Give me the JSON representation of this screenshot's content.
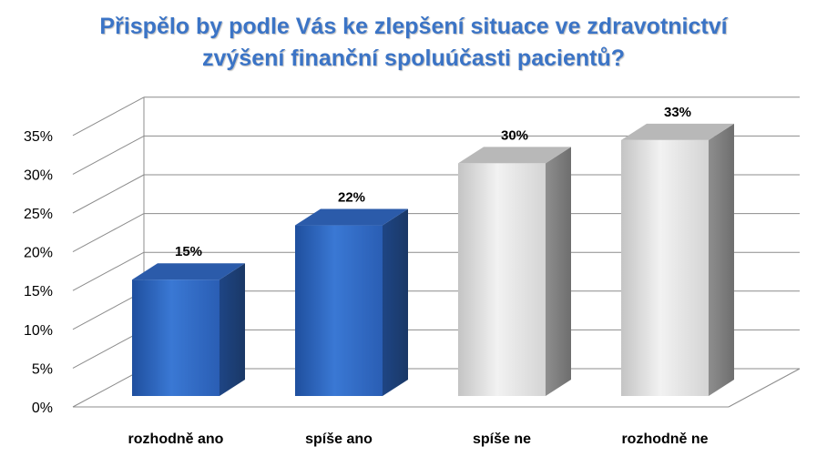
{
  "chart_data": {
    "type": "bar",
    "title_lines": [
      "Přispělo by podle Vás ke zlepšení situace ve zdravotnictví",
      "zvýšení finanční spoluúčasti pacientů?"
    ],
    "categories": [
      "rozhodně ano",
      "spíše ano",
      "spíše ne",
      "rozhodně ne"
    ],
    "values": [
      15,
      22,
      30,
      33
    ],
    "data_labels": [
      "15%",
      "22%",
      "30%",
      "33%"
    ],
    "y_ticks": [
      "0%",
      "5%",
      "10%",
      "15%",
      "20%",
      "25%",
      "30%",
      "35%"
    ],
    "ylim": [
      0,
      35
    ],
    "grid": true,
    "legend": "none",
    "xlabel": "",
    "ylabel": "",
    "bar_colors": [
      "#2F66BE",
      "#2F66BE",
      "#DADADA",
      "#DADADA"
    ],
    "title_color": "#3B74C6"
  }
}
